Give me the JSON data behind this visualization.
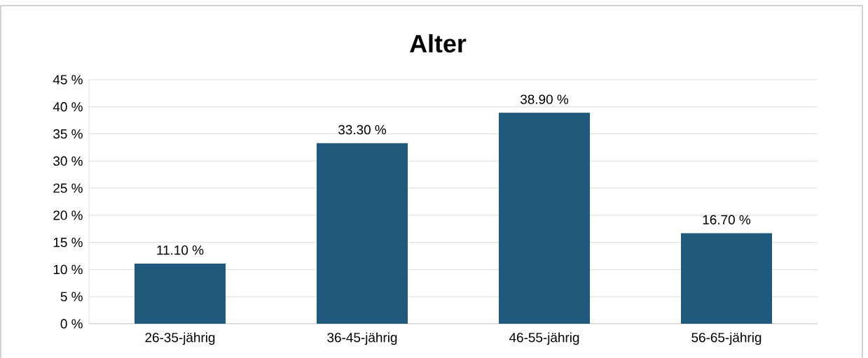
{
  "chart_data": {
    "type": "bar",
    "title": "Alter",
    "categories": [
      "26-35-jährig",
      "36-45-jährig",
      "46-55-jährig",
      "56-65-jährig"
    ],
    "values": [
      11.1,
      33.3,
      38.9,
      16.7
    ],
    "value_labels": [
      "11.10 %",
      "33.30 %",
      "38.90 %",
      "16.70 %"
    ],
    "color": "#1f5a7d",
    "ylim": [
      0,
      45
    ],
    "yticks": [
      {
        "value": 0,
        "label": "0 %"
      },
      {
        "value": 5,
        "label": "5 %"
      },
      {
        "value": 10,
        "label": "10 %"
      },
      {
        "value": 15,
        "label": "15 %"
      },
      {
        "value": 20,
        "label": "20 %"
      },
      {
        "value": 25,
        "label": "25 %"
      },
      {
        "value": 30,
        "label": "30 %"
      },
      {
        "value": 35,
        "label": "35 %"
      },
      {
        "value": 40,
        "label": "40 %"
      },
      {
        "value": 45,
        "label": "45 %"
      }
    ],
    "grid": "y"
  }
}
